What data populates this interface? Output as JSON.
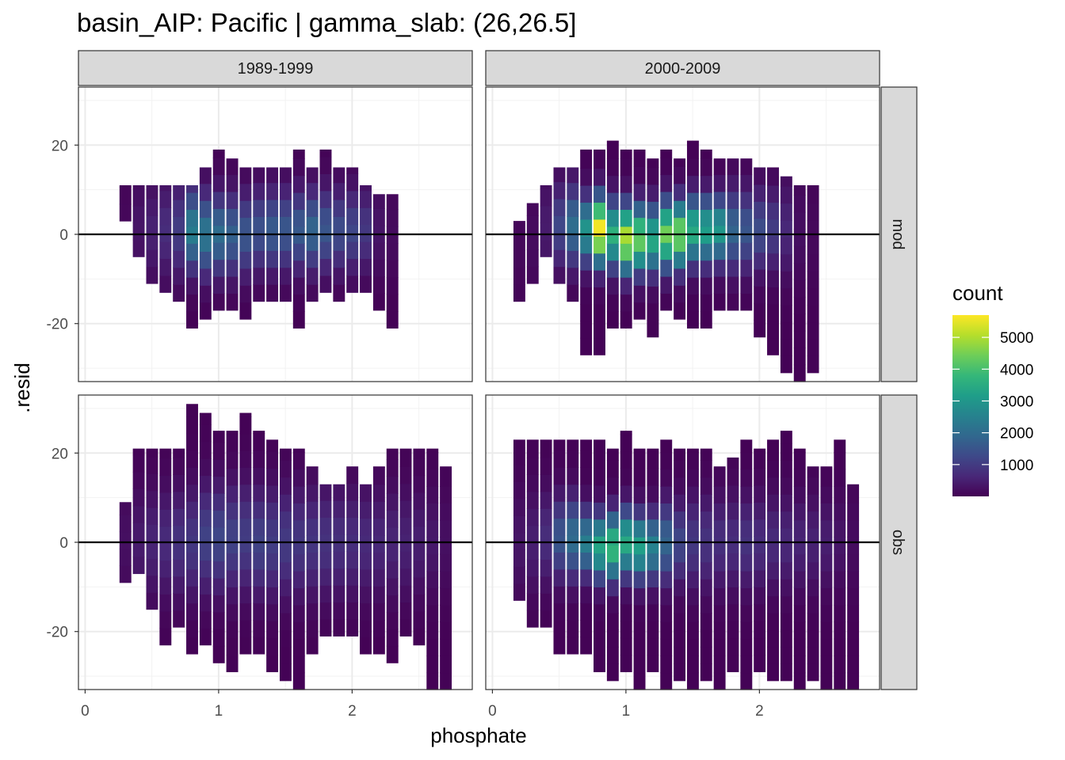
{
  "chart_data": {
    "type": "heatmap",
    "title": "basin_AIP: Pacific | gamma_slab: (26,26.5]",
    "xlabel": "phosphate",
    "ylabel": ".resid",
    "xlim": [
      -0.05,
      2.9
    ],
    "ylim": [
      -33,
      33
    ],
    "xticks": [
      0,
      1,
      2
    ],
    "yticks": [
      -20,
      0,
      20
    ],
    "hline_y": 0,
    "grid": true,
    "facet_cols": [
      "1989-1999",
      "2000-2009"
    ],
    "facet_rows": [
      "mod",
      "obs"
    ],
    "bin_width_x": 0.085,
    "bin_width_y": 3.8,
    "color_scale": {
      "name": "viridis",
      "low_color": "#440154",
      "high_color": "#fde725",
      "min": 0,
      "max": 5700
    },
    "legend": {
      "title": "count",
      "position": "right",
      "breaks": [
        1000,
        2000,
        3000,
        4000,
        5000
      ]
    },
    "panels": [
      {
        "col": "1989-1999",
        "row": "mod",
        "columns": [
          {
            "x": 0.3,
            "ymin": 3,
            "ymax": 11,
            "peak": 80,
            "cy": 2,
            "sy": 8
          },
          {
            "x": 0.4,
            "ymin": -5,
            "ymax": 11,
            "peak": 300,
            "cy": 2,
            "sy": 7
          },
          {
            "x": 0.5,
            "ymin": -11,
            "ymax": 11,
            "peak": 500,
            "cy": 1,
            "sy": 7
          },
          {
            "x": 0.6,
            "ymin": -13,
            "ymax": 11,
            "peak": 700,
            "cy": 1,
            "sy": 7
          },
          {
            "x": 0.7,
            "ymin": -15,
            "ymax": 11,
            "peak": 1000,
            "cy": 1,
            "sy": 7
          },
          {
            "x": 0.8,
            "ymin": -21,
            "ymax": 11,
            "peak": 2400,
            "cy": 1,
            "sy": 6
          },
          {
            "x": 0.9,
            "ymin": -19,
            "ymax": 15,
            "peak": 2200,
            "cy": 0,
            "sy": 6
          },
          {
            "x": 1.0,
            "ymin": -17,
            "ymax": 19,
            "peak": 2000,
            "cy": 0,
            "sy": 6
          },
          {
            "x": 1.1,
            "ymin": -17,
            "ymax": 17,
            "peak": 1700,
            "cy": 0,
            "sy": 6
          },
          {
            "x": 1.2,
            "ymin": -19,
            "ymax": 15,
            "peak": 1500,
            "cy": 0,
            "sy": 6
          },
          {
            "x": 1.3,
            "ymin": -15,
            "ymax": 15,
            "peak": 1400,
            "cy": 1,
            "sy": 6
          },
          {
            "x": 1.4,
            "ymin": -15,
            "ymax": 15,
            "peak": 1600,
            "cy": 1,
            "sy": 6
          },
          {
            "x": 1.5,
            "ymin": -15,
            "ymax": 15,
            "peak": 1500,
            "cy": 1,
            "sy": 6
          },
          {
            "x": 1.6,
            "ymin": -21,
            "ymax": 19,
            "peak": 1600,
            "cy": 1,
            "sy": 6
          },
          {
            "x": 1.7,
            "ymin": -15,
            "ymax": 15,
            "peak": 1800,
            "cy": 1,
            "sy": 6
          },
          {
            "x": 1.8,
            "ymin": -13,
            "ymax": 19,
            "peak": 1500,
            "cy": 1,
            "sy": 6
          },
          {
            "x": 1.9,
            "ymin": -15,
            "ymax": 15,
            "peak": 1300,
            "cy": 1,
            "sy": 6
          },
          {
            "x": 2.0,
            "ymin": -13,
            "ymax": 15,
            "peak": 1200,
            "cy": 1,
            "sy": 6
          },
          {
            "x": 2.1,
            "ymin": -13,
            "ymax": 11,
            "peak": 900,
            "cy": 1,
            "sy": 6
          },
          {
            "x": 2.2,
            "ymin": -17,
            "ymax": 9,
            "peak": 300,
            "cy": 1,
            "sy": 7
          },
          {
            "x": 2.3,
            "ymin": -21,
            "ymax": 9,
            "peak": 150,
            "cy": 0,
            "sy": 7
          }
        ]
      },
      {
        "col": "2000-2009",
        "row": "mod",
        "columns": [
          {
            "x": 0.2,
            "ymin": -15,
            "ymax": 3,
            "peak": 80,
            "cy": -3,
            "sy": 8
          },
          {
            "x": 0.3,
            "ymin": -11,
            "ymax": 7,
            "peak": 150,
            "cy": -1,
            "sy": 8
          },
          {
            "x": 0.4,
            "ymin": -5,
            "ymax": 11,
            "peak": 400,
            "cy": 2,
            "sy": 7
          },
          {
            "x": 0.5,
            "ymin": -11,
            "ymax": 15,
            "peak": 1200,
            "cy": 2,
            "sy": 6
          },
          {
            "x": 0.6,
            "ymin": -15,
            "ymax": 15,
            "peak": 2000,
            "cy": 2,
            "sy": 6
          },
          {
            "x": 0.7,
            "ymin": -27,
            "ymax": 19,
            "peak": 2900,
            "cy": 1,
            "sy": 5
          },
          {
            "x": 0.8,
            "ymin": -27,
            "ymax": 19,
            "peak": 5600,
            "cy": 1,
            "sy": 5
          },
          {
            "x": 0.9,
            "ymin": -21,
            "ymax": 21,
            "peak": 3600,
            "cy": 0,
            "sy": 5
          },
          {
            "x": 1.0,
            "ymin": -21,
            "ymax": 19,
            "peak": 5000,
            "cy": -1,
            "sy": 5
          },
          {
            "x": 1.1,
            "ymin": -19,
            "ymax": 19,
            "peak": 4300,
            "cy": -1,
            "sy": 5
          },
          {
            "x": 1.2,
            "ymin": -23,
            "ymax": 17,
            "peak": 3400,
            "cy": -1,
            "sy": 5
          },
          {
            "x": 1.3,
            "ymin": -17,
            "ymax": 19,
            "peak": 4400,
            "cy": 0,
            "sy": 5
          },
          {
            "x": 1.4,
            "ymin": -19,
            "ymax": 17,
            "peak": 4500,
            "cy": 0,
            "sy": 5
          },
          {
            "x": 1.5,
            "ymin": -21,
            "ymax": 21,
            "peak": 3500,
            "cy": 1,
            "sy": 5
          },
          {
            "x": 1.6,
            "ymin": -21,
            "ymax": 19,
            "peak": 3200,
            "cy": 1,
            "sy": 5
          },
          {
            "x": 1.7,
            "ymin": -17,
            "ymax": 17,
            "peak": 3000,
            "cy": 1,
            "sy": 5
          },
          {
            "x": 1.8,
            "ymin": -17,
            "ymax": 17,
            "peak": 1800,
            "cy": 1,
            "sy": 6
          },
          {
            "x": 1.9,
            "ymin": -17,
            "ymax": 17,
            "peak": 1500,
            "cy": 1,
            "sy": 6
          },
          {
            "x": 2.0,
            "ymin": -23,
            "ymax": 15,
            "peak": 1300,
            "cy": 1,
            "sy": 6
          },
          {
            "x": 2.1,
            "ymin": -27,
            "ymax": 15,
            "peak": 1000,
            "cy": 1,
            "sy": 6
          },
          {
            "x": 2.2,
            "ymin": -31,
            "ymax": 13,
            "peak": 600,
            "cy": 1,
            "sy": 7
          },
          {
            "x": 2.3,
            "ymin": -33,
            "ymax": 11,
            "peak": 200,
            "cy": 0,
            "sy": 8
          },
          {
            "x": 2.4,
            "ymin": -31,
            "ymax": 11,
            "peak": 100,
            "cy": 0,
            "sy": 8
          }
        ]
      },
      {
        "col": "1989-1999",
        "row": "obs",
        "columns": [
          {
            "x": 0.3,
            "ymin": -9,
            "ymax": 9,
            "peak": 200,
            "cy": 0,
            "sy": 8
          },
          {
            "x": 0.4,
            "ymin": -7,
            "ymax": 21,
            "peak": 400,
            "cy": 0,
            "sy": 8
          },
          {
            "x": 0.5,
            "ymin": -15,
            "ymax": 21,
            "peak": 550,
            "cy": 0,
            "sy": 8
          },
          {
            "x": 0.6,
            "ymin": -23,
            "ymax": 21,
            "peak": 650,
            "cy": 0,
            "sy": 8
          },
          {
            "x": 0.7,
            "ymin": -19,
            "ymax": 21,
            "peak": 800,
            "cy": 0,
            "sy": 8
          },
          {
            "x": 0.8,
            "ymin": -25,
            "ymax": 31,
            "peak": 900,
            "cy": 0,
            "sy": 8
          },
          {
            "x": 0.9,
            "ymin": -23,
            "ymax": 29,
            "peak": 1100,
            "cy": 1,
            "sy": 8
          },
          {
            "x": 1.0,
            "ymin": -27,
            "ymax": 25,
            "peak": 1200,
            "cy": 1,
            "sy": 8
          },
          {
            "x": 1.1,
            "ymin": -29,
            "ymax": 25,
            "peak": 1100,
            "cy": 1,
            "sy": 8
          },
          {
            "x": 1.2,
            "ymin": -25,
            "ymax": 29,
            "peak": 1000,
            "cy": 1,
            "sy": 8
          },
          {
            "x": 1.3,
            "ymin": -25,
            "ymax": 25,
            "peak": 1100,
            "cy": 0,
            "sy": 8
          },
          {
            "x": 1.4,
            "ymin": -29,
            "ymax": 23,
            "peak": 1000,
            "cy": 0,
            "sy": 8
          },
          {
            "x": 1.5,
            "ymin": -31,
            "ymax": 21,
            "peak": 950,
            "cy": 0,
            "sy": 8
          },
          {
            "x": 1.6,
            "ymin": -33,
            "ymax": 21,
            "peak": 900,
            "cy": 0,
            "sy": 8
          },
          {
            "x": 1.7,
            "ymin": -25,
            "ymax": 17,
            "peak": 850,
            "cy": 0,
            "sy": 8
          },
          {
            "x": 1.8,
            "ymin": -21,
            "ymax": 13,
            "peak": 800,
            "cy": 0,
            "sy": 8
          },
          {
            "x": 1.9,
            "ymin": -21,
            "ymax": 13,
            "peak": 750,
            "cy": 0,
            "sy": 8
          },
          {
            "x": 2.0,
            "ymin": -21,
            "ymax": 17,
            "peak": 700,
            "cy": 0,
            "sy": 8
          },
          {
            "x": 2.1,
            "ymin": -25,
            "ymax": 13,
            "peak": 650,
            "cy": 0,
            "sy": 8
          },
          {
            "x": 2.2,
            "ymin": -25,
            "ymax": 17,
            "peak": 600,
            "cy": 0,
            "sy": 8
          },
          {
            "x": 2.3,
            "ymin": -27,
            "ymax": 21,
            "peak": 550,
            "cy": 0,
            "sy": 8
          },
          {
            "x": 2.4,
            "ymin": -21,
            "ymax": 21,
            "peak": 500,
            "cy": 0,
            "sy": 8
          },
          {
            "x": 2.5,
            "ymin": -23,
            "ymax": 21,
            "peak": 450,
            "cy": 0,
            "sy": 8
          },
          {
            "x": 2.6,
            "ymin": -33,
            "ymax": 21,
            "peak": 350,
            "cy": 0,
            "sy": 8
          },
          {
            "x": 2.7,
            "ymin": -33,
            "ymax": 17,
            "peak": 200,
            "cy": 0,
            "sy": 8
          }
        ]
      },
      {
        "col": "2000-2009",
        "row": "obs",
        "columns": [
          {
            "x": 0.2,
            "ymin": -13,
            "ymax": 23,
            "peak": 300,
            "cy": 0,
            "sy": 8
          },
          {
            "x": 0.3,
            "ymin": -19,
            "ymax": 23,
            "peak": 450,
            "cy": 0,
            "sy": 8
          },
          {
            "x": 0.4,
            "ymin": -19,
            "ymax": 23,
            "peak": 700,
            "cy": 1,
            "sy": 7
          },
          {
            "x": 0.5,
            "ymin": -25,
            "ymax": 23,
            "peak": 1500,
            "cy": 1,
            "sy": 6
          },
          {
            "x": 0.6,
            "ymin": -25,
            "ymax": 23,
            "peak": 2000,
            "cy": 1,
            "sy": 6
          },
          {
            "x": 0.7,
            "ymin": -25,
            "ymax": 23,
            "peak": 2400,
            "cy": 0,
            "sy": 5
          },
          {
            "x": 0.8,
            "ymin": -29,
            "ymax": 23,
            "peak": 3300,
            "cy": -1,
            "sy": 5
          },
          {
            "x": 0.9,
            "ymin": -31,
            "ymax": 21,
            "peak": 3800,
            "cy": -1,
            "sy": 5
          },
          {
            "x": 1.0,
            "ymin": -29,
            "ymax": 25,
            "peak": 3400,
            "cy": 0,
            "sy": 5
          },
          {
            "x": 1.1,
            "ymin": -33,
            "ymax": 21,
            "peak": 3200,
            "cy": -1,
            "sy": 5
          },
          {
            "x": 1.2,
            "ymin": -29,
            "ymax": 21,
            "peak": 2500,
            "cy": -1,
            "sy": 5
          },
          {
            "x": 1.3,
            "ymin": -33,
            "ymax": 23,
            "peak": 1800,
            "cy": 0,
            "sy": 6
          },
          {
            "x": 1.4,
            "ymin": -31,
            "ymax": 21,
            "peak": 1200,
            "cy": 0,
            "sy": 6
          },
          {
            "x": 1.5,
            "ymin": -33,
            "ymax": 21,
            "peak": 900,
            "cy": 0,
            "sy": 7
          },
          {
            "x": 1.6,
            "ymin": -31,
            "ymax": 21,
            "peak": 800,
            "cy": 0,
            "sy": 7
          },
          {
            "x": 1.7,
            "ymin": -33,
            "ymax": 17,
            "peak": 750,
            "cy": 0,
            "sy": 7
          },
          {
            "x": 1.8,
            "ymin": -29,
            "ymax": 19,
            "peak": 700,
            "cy": 0,
            "sy": 7
          },
          {
            "x": 1.9,
            "ymin": -33,
            "ymax": 23,
            "peak": 800,
            "cy": 0,
            "sy": 7
          },
          {
            "x": 2.0,
            "ymin": -29,
            "ymax": 21,
            "peak": 700,
            "cy": 0,
            "sy": 7
          },
          {
            "x": 2.1,
            "ymin": -31,
            "ymax": 23,
            "peak": 650,
            "cy": 0,
            "sy": 7
          },
          {
            "x": 2.2,
            "ymin": -31,
            "ymax": 25,
            "peak": 600,
            "cy": 0,
            "sy": 7
          },
          {
            "x": 2.3,
            "ymin": -33,
            "ymax": 21,
            "peak": 550,
            "cy": 0,
            "sy": 7
          },
          {
            "x": 2.4,
            "ymin": -31,
            "ymax": 17,
            "peak": 500,
            "cy": 0,
            "sy": 7
          },
          {
            "x": 2.5,
            "ymin": -33,
            "ymax": 17,
            "peak": 450,
            "cy": 0,
            "sy": 7
          },
          {
            "x": 2.6,
            "ymin": -33,
            "ymax": 23,
            "peak": 300,
            "cy": 0,
            "sy": 7
          },
          {
            "x": 2.7,
            "ymin": -33,
            "ymax": 13,
            "peak": 150,
            "cy": 0,
            "sy": 8
          }
        ]
      }
    ]
  }
}
